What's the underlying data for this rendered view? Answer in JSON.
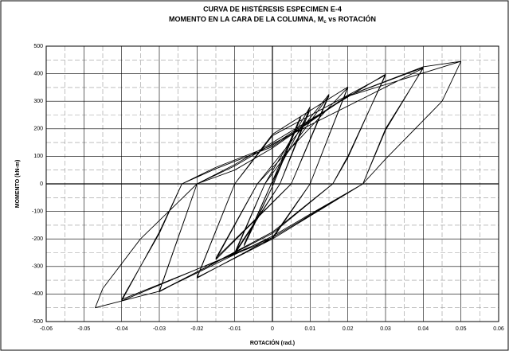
{
  "chart_data": {
    "type": "line",
    "title": "CURVA DE HISTÉRESIS ESPECIMEN E-4",
    "subtitle": {
      "main": "MOMENTO EN LA CARA DE LA COLUMNA, M",
      "sub": "c",
      "tail": " vs ROTACIÓN"
    },
    "x_label": "ROTACIÓN (rad.)",
    "y_label": "MOMENTO (kN-m)",
    "xlim": [
      -0.06,
      0.06
    ],
    "ylim": [
      -500,
      500
    ],
    "xticks": [
      -0.06,
      -0.05,
      -0.04,
      -0.03,
      -0.02,
      -0.01,
      0,
      0.01,
      0.02,
      0.03,
      0.04,
      0.05,
      0.06
    ],
    "yticks": [
      -500,
      -400,
      -300,
      -200,
      -100,
      0,
      100,
      200,
      300,
      400,
      500
    ],
    "minor_xticks": [
      -0.055,
      -0.045,
      -0.035,
      -0.025,
      -0.015,
      -0.005,
      0.005,
      0.015,
      0.025,
      0.035,
      0.045,
      0.055
    ],
    "minor_yticks": [
      -450,
      -350,
      -250,
      -150,
      -50,
      50,
      150,
      250,
      350,
      450
    ],
    "grid": true,
    "x": [
      0,
      0.0075,
      0,
      -0.0075,
      0,
      0.0075,
      0,
      -0.0075,
      0,
      0.01,
      0.002,
      -0.01,
      -0.002,
      0.01,
      0.002,
      -0.01,
      -0.002,
      0.015,
      0.005,
      -0.015,
      -0.004,
      0.015,
      0.005,
      -0.015,
      -0.004,
      0.02,
      0.01,
      0,
      -0.02,
      -0.01,
      0,
      0.02,
      0.01,
      0,
      -0.02,
      -0.01,
      0,
      0.03,
      0.02,
      0.016,
      0,
      -0.03,
      -0.02,
      -0.01,
      0,
      0.03,
      0.02,
      0.016,
      0,
      -0.03,
      -0.02,
      -0.01,
      0,
      0.04,
      0.03,
      0.024,
      0,
      -0.04,
      -0.03,
      -0.024,
      -0.015,
      0,
      0.02,
      0.04,
      0.03,
      0.024,
      0,
      -0.04,
      -0.03,
      -0.024,
      -0.015,
      0,
      0.02,
      0.05,
      0.045,
      0.03,
      0.024,
      0.01,
      0,
      -0.03,
      -0.047,
      -0.045,
      -0.035,
      -0.02,
      -0.01,
      0,
      0.02,
      0.04,
      0.05
    ],
    "series": [
      {
        "color": "#000000",
        "values": [
          0,
          240,
          -10,
          -220,
          10,
          245,
          -10,
          -225,
          10,
          270,
          0,
          -250,
          0,
          280,
          0,
          -255,
          0,
          320,
          0,
          -270,
          0,
          325,
          0,
          -275,
          0,
          350,
          0,
          -200,
          -340,
          0,
          180,
          352,
          0,
          -195,
          -342,
          0,
          175,
          395,
          100,
          0,
          -180,
          -390,
          0,
          70,
          150,
          398,
          95,
          0,
          -175,
          -392,
          0,
          65,
          145,
          420,
          200,
          0,
          -200,
          -420,
          -180,
          0,
          60,
          140,
          320,
          422,
          195,
          0,
          -195,
          -425,
          -175,
          0,
          55,
          135,
          318,
          445,
          300,
          90,
          0,
          -110,
          -190,
          -390,
          -450,
          -380,
          -200,
          0,
          50,
          130,
          320,
          425,
          445
        ]
      }
    ]
  }
}
